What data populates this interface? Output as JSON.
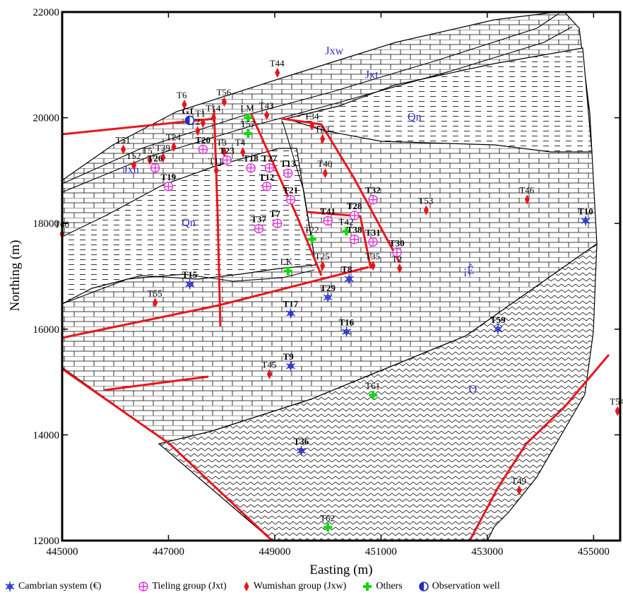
{
  "axes": {
    "xlabel": "Easting (m)",
    "ylabel": "Northing (m)",
    "xlim": [
      445000,
      455500
    ],
    "ylim": [
      12000,
      22000
    ],
    "xticks": [
      "445000",
      "447000",
      "449000",
      "451000",
      "453000",
      "455000"
    ],
    "yticks": [
      "12000",
      "14000",
      "16000",
      "18000",
      "20000",
      "22000"
    ]
  },
  "units": [
    {
      "label": "Jxw",
      "x": 449950,
      "y": 21200
    },
    {
      "label": "Jxt",
      "x": 450700,
      "y": 20750
    },
    {
      "label": "Qn",
      "x": 451500,
      "y": 19950
    },
    {
      "label": "Jxh",
      "x": 446150,
      "y": 18950
    },
    {
      "label": "Qn",
      "x": 447250,
      "y": 17950
    },
    {
      "label": "¡Ê",
      "x": 452550,
      "y": 17050
    },
    {
      "label": "O",
      "x": 452650,
      "y": 14800
    }
  ],
  "colors": {
    "fault": "#e8161b",
    "cambrian": "#1f2fc8",
    "tieling": "#e032d6",
    "wumishan": "#e8161b",
    "others": "#12d612",
    "observation": "#1f2fc8",
    "unit_text": "#2a2acf"
  },
  "wells": [
    {
      "name": "T6",
      "type": "wumishan",
      "x": 447300,
      "y": 20250
    },
    {
      "name": "T56",
      "type": "wumishan",
      "x": 448050,
      "y": 20300
    },
    {
      "name": "T44",
      "type": "wumishan",
      "x": 449050,
      "y": 20850
    },
    {
      "name": "T1",
      "type": "wumishan",
      "x": 447650,
      "y": 19900
    },
    {
      "name": "T14",
      "type": "wumishan",
      "x": 447850,
      "y": 20000
    },
    {
      "name": "T2",
      "type": "wumishan",
      "x": 447550,
      "y": 19750
    },
    {
      "name": "G1",
      "type": "observation",
      "x": 447400,
      "y": 19950
    },
    {
      "name": "LM",
      "type": "others",
      "x": 448500,
      "y": 20000
    },
    {
      "name": "T43",
      "type": "wumishan",
      "x": 448850,
      "y": 20050
    },
    {
      "name": "T57",
      "type": "others",
      "x": 448500,
      "y": 19700
    },
    {
      "name": "T34",
      "type": "wumishan",
      "x": 449700,
      "y": 19850
    },
    {
      "name": "T63",
      "type": "wumishan",
      "x": 449900,
      "y": 19600
    },
    {
      "name": "T51",
      "type": "wumishan",
      "x": 446150,
      "y": 19400
    },
    {
      "name": "T24",
      "type": "wumishan",
      "x": 447100,
      "y": 19450
    },
    {
      "name": "T20",
      "type": "tieling",
      "x": 447650,
      "y": 19400
    },
    {
      "name": "T3",
      "type": "wumishan",
      "x": 448050,
      "y": 19350
    },
    {
      "name": "T4",
      "type": "wumishan",
      "x": 448400,
      "y": 19350
    },
    {
      "name": "T5",
      "type": "wumishan",
      "x": 446650,
      "y": 19200
    },
    {
      "name": "T52",
      "type": "wumishan",
      "x": 446350,
      "y": 19100
    },
    {
      "name": "T39",
      "type": "wumishan",
      "x": 446900,
      "y": 19250
    },
    {
      "name": "T26",
      "type": "tieling",
      "x": 446750,
      "y": 19050
    },
    {
      "name": "T23",
      "type": "tieling",
      "x": 448100,
      "y": 19200
    },
    {
      "name": "T11",
      "type": "wumishan",
      "x": 447900,
      "y": 19000
    },
    {
      "name": "T18",
      "type": "tieling",
      "x": 448550,
      "y": 19050
    },
    {
      "name": "T27",
      "type": "tieling",
      "x": 448900,
      "y": 19050
    },
    {
      "name": "T13",
      "type": "tieling",
      "x": 449250,
      "y": 18950
    },
    {
      "name": "T40",
      "type": "wumishan",
      "x": 449950,
      "y": 18950
    },
    {
      "name": "T19",
      "type": "tieling",
      "x": 447000,
      "y": 18700
    },
    {
      "name": "T12",
      "type": "tieling",
      "x": 448850,
      "y": 18700
    },
    {
      "name": "T21",
      "type": "tieling",
      "x": 449300,
      "y": 18450
    },
    {
      "name": "T32",
      "type": "tieling",
      "x": 450850,
      "y": 18450
    },
    {
      "name": "T53",
      "type": "wumishan",
      "x": 451850,
      "y": 18250
    },
    {
      "name": "T46",
      "type": "wumishan",
      "x": 453750,
      "y": 18450
    },
    {
      "name": "T10",
      "type": "cambrian",
      "x": 454850,
      "y": 18050
    },
    {
      "name": "T60",
      "type": "wumishan",
      "x": 445000,
      "y": 17800
    },
    {
      "name": "T28",
      "type": "tieling",
      "x": 450500,
      "y": 18150
    },
    {
      "name": "T41",
      "type": "tieling",
      "x": 450000,
      "y": 18050
    },
    {
      "name": "T37",
      "type": "tieling",
      "x": 448700,
      "y": 17900
    },
    {
      "name": "T7",
      "type": "tieling",
      "x": 449050,
      "y": 18000
    },
    {
      "name": "T22",
      "type": "others",
      "x": 449700,
      "y": 17700
    },
    {
      "name": "T42",
      "type": "others",
      "x": 450350,
      "y": 17850
    },
    {
      "name": "T38",
      "type": "tieling",
      "x": 450500,
      "y": 17700
    },
    {
      "name": "T31",
      "type": "tieling",
      "x": 450850,
      "y": 17650
    },
    {
      "name": "T30",
      "type": "tieling",
      "x": 451300,
      "y": 17450
    },
    {
      "name": "T25",
      "type": "wumishan",
      "x": 449900,
      "y": 17200
    },
    {
      "name": "T35",
      "type": "wumishan",
      "x": 450850,
      "y": 17200
    },
    {
      "name": "T2",
      "type": "wumishan",
      "x": 451350,
      "y": 17150
    },
    {
      "name": "LK",
      "type": "others",
      "x": 449250,
      "y": 17100
    },
    {
      "name": "T8",
      "type": "cambrian",
      "x": 450400,
      "y": 16950
    },
    {
      "name": "T15",
      "type": "cambrian",
      "x": 447400,
      "y": 16850
    },
    {
      "name": "T55",
      "type": "wumishan",
      "x": 446750,
      "y": 16500
    },
    {
      "name": "T29",
      "type": "cambrian",
      "x": 450000,
      "y": 16600
    },
    {
      "name": "T17",
      "type": "cambrian",
      "x": 449300,
      "y": 16300
    },
    {
      "name": "T16",
      "type": "cambrian",
      "x": 450350,
      "y": 15950
    },
    {
      "name": "T59",
      "type": "cambrian",
      "x": 453200,
      "y": 16000
    },
    {
      "name": "T45",
      "type": "wumishan",
      "x": 448900,
      "y": 15150
    },
    {
      "name": "T9",
      "type": "cambrian",
      "x": 449300,
      "y": 15300
    },
    {
      "name": "T61",
      "type": "others",
      "x": 450850,
      "y": 14750
    },
    {
      "name": "T54",
      "type": "wumishan",
      "x": 455450,
      "y": 14450
    },
    {
      "name": "T36",
      "type": "cambrian",
      "x": 449500,
      "y": 13700
    },
    {
      "name": "T49",
      "type": "wumishan",
      "x": 453600,
      "y": 12950
    },
    {
      "name": "T62",
      "type": "others",
      "x": 450000,
      "y": 12250
    }
  ],
  "legend": {
    "cambrian": "Cambrian system (€)",
    "tieling": "Tieling group (Jxt)",
    "wumishan": "Wumishan group (Jxw)",
    "others": "Others",
    "observation": "Observation well"
  }
}
